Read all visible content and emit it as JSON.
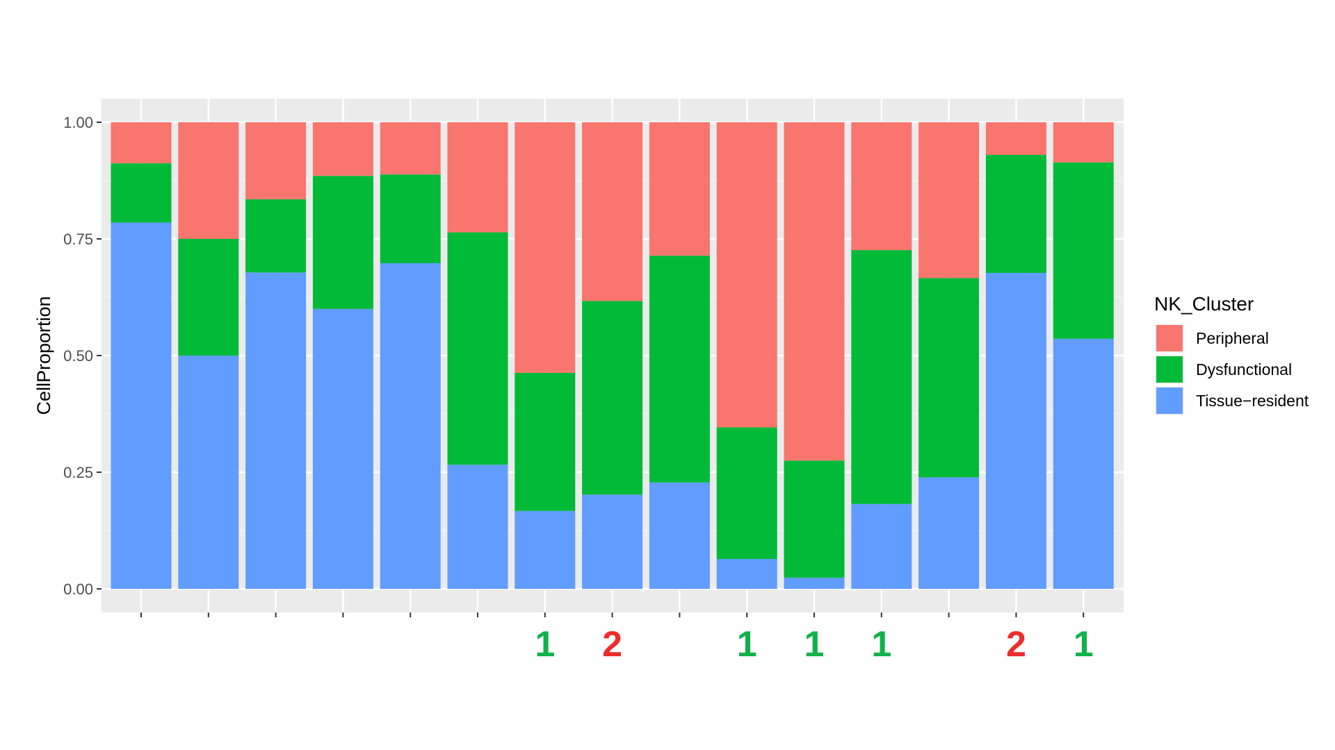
{
  "chart_data": {
    "type": "bar",
    "stacked": true,
    "ylabel": "CellProportion",
    "xlabel": "",
    "ylim": [
      0,
      1
    ],
    "yticks": [
      "0.00",
      "0.25",
      "0.50",
      "0.75",
      "1.00"
    ],
    "grid": true,
    "legend": {
      "title": "NK_Cluster",
      "placement": "right",
      "items": [
        "Peripheral",
        "Dysfunctional",
        "Tissue−resident"
      ]
    },
    "series": [
      {
        "name": "Tissue−resident",
        "color": "#619CFF",
        "values": [
          0.785,
          0.5,
          0.678,
          0.6,
          0.698,
          0.266,
          0.167,
          0.202,
          0.228,
          0.064,
          0.024,
          0.182,
          0.239,
          0.677,
          0.536
        ]
      },
      {
        "name": "Dysfunctional",
        "color": "#00BA38",
        "values": [
          0.127,
          0.25,
          0.157,
          0.285,
          0.19,
          0.498,
          0.296,
          0.415,
          0.486,
          0.282,
          0.251,
          0.544,
          0.427,
          0.253,
          0.378
        ]
      },
      {
        "name": "Peripheral",
        "color": "#F8766D",
        "values": [
          0.088,
          0.25,
          0.165,
          0.115,
          0.112,
          0.236,
          0.537,
          0.383,
          0.286,
          0.654,
          0.725,
          0.274,
          0.334,
          0.07,
          0.086
        ]
      }
    ],
    "annotations": [
      {
        "bar": 7,
        "text": "1",
        "color": "#10b24a"
      },
      {
        "bar": 8,
        "text": "2",
        "color": "#ee2c2c"
      },
      {
        "bar": 10,
        "text": "1",
        "color": "#10b24a"
      },
      {
        "bar": 11,
        "text": "1",
        "color": "#10b24a"
      },
      {
        "bar": 12,
        "text": "1",
        "color": "#10b24a"
      },
      {
        "bar": 14,
        "text": "2",
        "color": "#ee2c2c"
      },
      {
        "bar": 15,
        "text": "1",
        "color": "#10b24a"
      }
    ]
  }
}
